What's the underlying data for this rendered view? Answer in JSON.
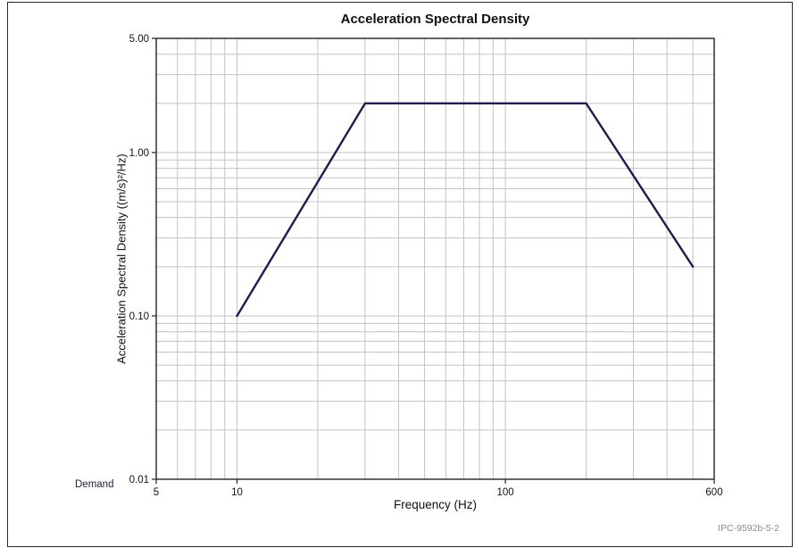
{
  "page": {
    "footer_ref": "IPC-9592b-5-2"
  },
  "chart_data": {
    "type": "line",
    "title": "Acceleration Spectral Density",
    "xlabel": "Frequency (Hz)",
    "ylabel": "Acceleration Spectral Density ((m/s)²/Hz)",
    "x_scale": "log",
    "y_scale": "log",
    "xlim": [
      5,
      600
    ],
    "ylim": [
      0.01,
      5
    ],
    "grid": true,
    "grid_color": "#c3c3c3",
    "frame_color": "#222222",
    "x_ticks": [
      {
        "value": 5,
        "label": "5"
      },
      {
        "value": 10,
        "label": "10"
      },
      {
        "value": 100,
        "label": "100"
      },
      {
        "value": 600,
        "label": "600"
      }
    ],
    "y_ticks": [
      {
        "value": 5,
        "label": "5.00"
      },
      {
        "value": 1,
        "label": "1.00"
      },
      {
        "value": 0.1,
        "label": "0.10"
      },
      {
        "value": 0.01,
        "label": "0.01"
      }
    ],
    "series": [
      {
        "name": "Demand",
        "color": "#1c1c50",
        "x": [
          10,
          30,
          200,
          500
        ],
        "y": [
          0.1,
          2.0,
          2.0,
          0.2
        ]
      }
    ],
    "legend_position": "bottom-left"
  }
}
